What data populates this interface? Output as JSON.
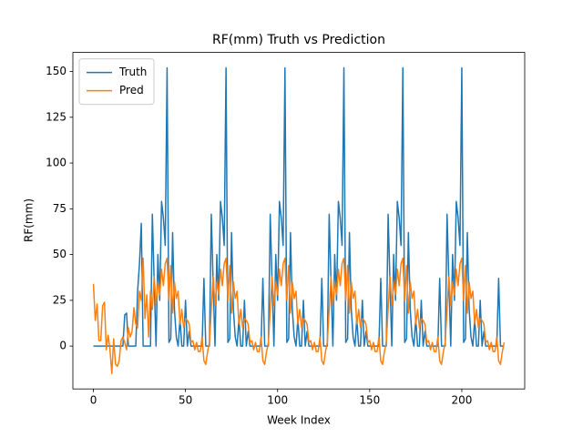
{
  "chart_data": {
    "type": "line",
    "title": "RF(mm) Truth vs Prediction",
    "x_label": "Week Index",
    "y_label": "RF(mm)",
    "xlim": [
      -11.15,
      234.15
    ],
    "xticks": [
      0,
      50,
      100,
      150,
      200
    ],
    "ylim": [
      -23.4,
      160.4
    ],
    "yticks": [
      0,
      25,
      50,
      75,
      100,
      125,
      150
    ],
    "legend": "upper left",
    "series": [
      {
        "name": "Truth",
        "color": "#1f77b4",
        "values": [
          0,
          0,
          0,
          0,
          0,
          0,
          0,
          0,
          0,
          0,
          0,
          0,
          0,
          0,
          0,
          0,
          0,
          17,
          18,
          0,
          0,
          0,
          0,
          0,
          30,
          45,
          67,
          0,
          0,
          0,
          0,
          0,
          72,
          35,
          0,
          50,
          25,
          79,
          70,
          55,
          152,
          2,
          4,
          62,
          20,
          5,
          0,
          15,
          0,
          0,
          25,
          0,
          8,
          0,
          0,
          0,
          0,
          0,
          0,
          0,
          37,
          0,
          0,
          0,
          72,
          35,
          0,
          50,
          25,
          79,
          70,
          55,
          152,
          2,
          4,
          62,
          20,
          5,
          0,
          15,
          0,
          0,
          25,
          0,
          8,
          0,
          0,
          0,
          0,
          0,
          0,
          0,
          37,
          0,
          0,
          0,
          72,
          35,
          0,
          50,
          25,
          79,
          70,
          55,
          152,
          2,
          4,
          62,
          20,
          5,
          0,
          15,
          0,
          0,
          25,
          0,
          8,
          0,
          0,
          0,
          0,
          0,
          0,
          0,
          37,
          0,
          0,
          0,
          72,
          35,
          0,
          50,
          25,
          79,
          70,
          55,
          152,
          2,
          4,
          62,
          20,
          5,
          0,
          15,
          0,
          0,
          25,
          0,
          8,
          0,
          0,
          0,
          0,
          0,
          0,
          0,
          37,
          0,
          0,
          0,
          72,
          35,
          0,
          50,
          25,
          79,
          70,
          55,
          152,
          2,
          4,
          62,
          20,
          5,
          0,
          15,
          0,
          0,
          25,
          0,
          8,
          0,
          0,
          0,
          0,
          0,
          0,
          0,
          37,
          0,
          0,
          0,
          72,
          35,
          0,
          50,
          25,
          79,
          70,
          55,
          152,
          2,
          4,
          62,
          20,
          5,
          0,
          15,
          0,
          0,
          25,
          0,
          8,
          0,
          0,
          0,
          0,
          0,
          0,
          0,
          37,
          0,
          0,
          0
        ]
      },
      {
        "name": "Pred",
        "color": "#ff7f0e",
        "values": [
          34,
          14,
          23,
          3,
          3,
          22,
          24,
          -2,
          6,
          -2,
          -15,
          4,
          -10,
          -11,
          -8,
          3,
          5,
          2,
          -2,
          10,
          5,
          8,
          21,
          12,
          10,
          30,
          25,
          48,
          15,
          28,
          5,
          30,
          20,
          38,
          22,
          35,
          28,
          42,
          33,
          45,
          48,
          25,
          44,
          18,
          35,
          26,
          30,
          12,
          20,
          10,
          15,
          14,
          12,
          2,
          3,
          -2,
          2,
          -3,
          -3,
          5,
          -8,
          -10,
          -3,
          2,
          20,
          38,
          22,
          35,
          28,
          42,
          33,
          45,
          48,
          25,
          44,
          18,
          35,
          26,
          30,
          12,
          20,
          10,
          15,
          14,
          12,
          2,
          3,
          -2,
          2,
          -3,
          -3,
          5,
          -8,
          -10,
          -3,
          2,
          20,
          38,
          22,
          35,
          28,
          42,
          33,
          45,
          48,
          25,
          44,
          18,
          35,
          26,
          30,
          12,
          20,
          10,
          15,
          14,
          12,
          2,
          3,
          -2,
          2,
          -3,
          -3,
          5,
          -8,
          -10,
          -3,
          2,
          20,
          38,
          22,
          35,
          28,
          42,
          33,
          45,
          48,
          25,
          44,
          18,
          35,
          26,
          30,
          12,
          20,
          10,
          15,
          14,
          12,
          2,
          3,
          -2,
          2,
          -3,
          -3,
          5,
          -8,
          -10,
          -3,
          2,
          20,
          38,
          22,
          35,
          28,
          42,
          33,
          45,
          48,
          25,
          44,
          18,
          35,
          26,
          30,
          12,
          20,
          10,
          15,
          14,
          12,
          2,
          3,
          -2,
          2,
          -3,
          -3,
          5,
          -8,
          -10,
          -3,
          2,
          20,
          38,
          22,
          35,
          28,
          42,
          33,
          45,
          48,
          25,
          44,
          18,
          35,
          26,
          30,
          12,
          20,
          10,
          15,
          14,
          12,
          2,
          3,
          -2,
          2,
          -3,
          -3,
          5,
          -8,
          -10,
          -3,
          2
        ]
      }
    ]
  }
}
